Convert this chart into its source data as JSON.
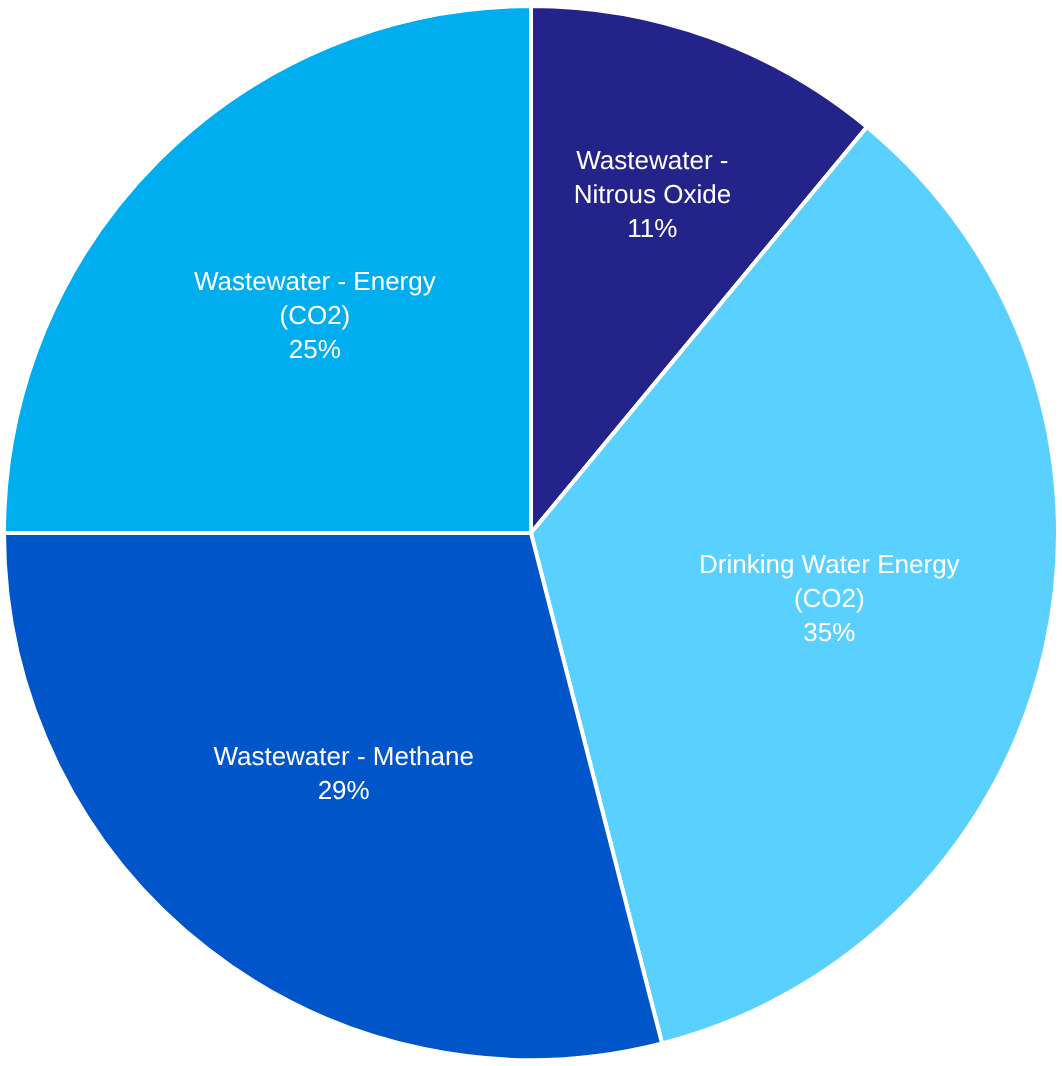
{
  "chart_data": {
    "type": "pie",
    "categories": [
      "Wastewater - Nitrous Oxide",
      "Drinking Water Energy (CO2)",
      "Wastewater - Methane",
      "Wastewater - Energy (CO2)"
    ],
    "values": [
      11,
      35,
      29,
      25
    ],
    "colors": [
      "#23238a",
      "#5ad0ff",
      "#0055c8",
      "#00aeef"
    ],
    "value_labels": [
      "11%",
      "35%",
      "29%",
      "25%"
    ],
    "legend": false
  }
}
